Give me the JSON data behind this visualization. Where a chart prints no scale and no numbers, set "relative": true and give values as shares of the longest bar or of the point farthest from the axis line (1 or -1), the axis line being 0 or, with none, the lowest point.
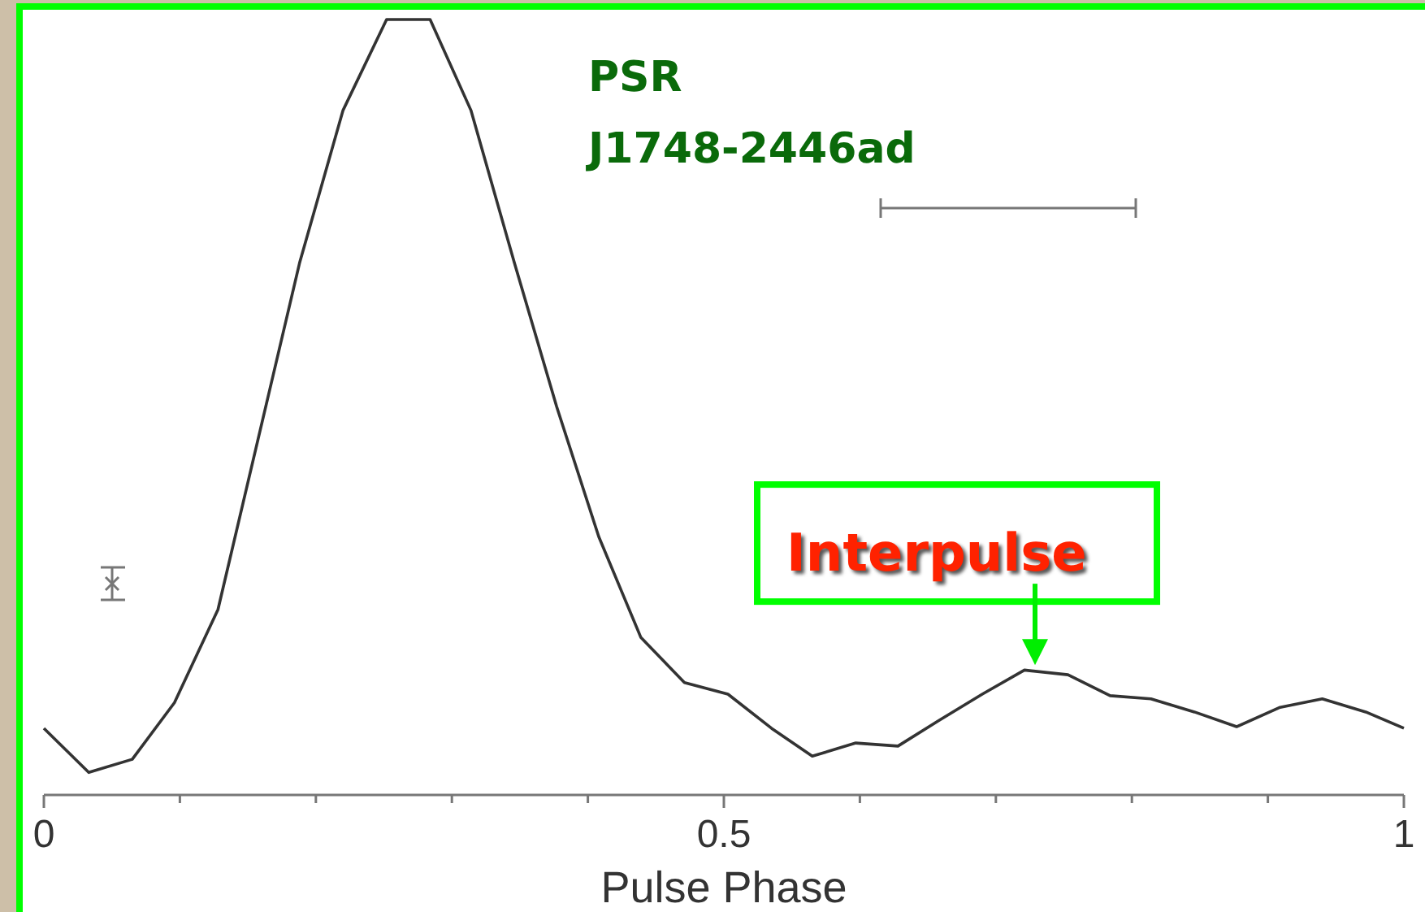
{
  "chart_data": {
    "type": "line",
    "title": "PSR J1748-2446ad",
    "xlabel": "Pulse Phase",
    "relative": true,
    "xlim": [
      0,
      1
    ],
    "xticks": [
      0,
      {
        "value": 0.1,
        "label": null
      },
      {
        "value": 0.2,
        "label": null
      },
      {
        "value": 0.3,
        "label": null
      },
      {
        "value": 0.4,
        "label": null
      },
      0.5,
      {
        "value": 0.6,
        "label": null
      },
      {
        "value": 0.7,
        "label": null
      },
      {
        "value": 0.8,
        "label": null
      },
      {
        "value": 0.9,
        "label": null
      },
      1
    ],
    "x": [
      0,
      0.033,
      0.065,
      0.096,
      0.128,
      0.157,
      0.188,
      0.22,
      0.252,
      0.284,
      0.314,
      0.346,
      0.377,
      0.408,
      0.439,
      0.471,
      0.503,
      0.535,
      0.565,
      0.597,
      0.628,
      0.658,
      0.69,
      0.721,
      0.753,
      0.784,
      0.814,
      0.846,
      0.877,
      0.909,
      0.94,
      0.972,
      1
    ],
    "series": [
      {
        "color": "#333333",
        "values": [
          0.086,
          0.029,
          0.046,
          0.119,
          0.239,
          0.455,
          0.686,
          0.883,
          1,
          1,
          0.883,
          0.686,
          0.501,
          0.333,
          0.203,
          0.145,
          0.13,
          0.086,
          0.05,
          0.067,
          0.063,
          0.096,
          0.13,
          0.161,
          0.155,
          0.128,
          0.124,
          0.107,
          0.088,
          0.113,
          0.124,
          0.107,
          0.086
        ]
      }
    ],
    "annotations": [
      {
        "text": "Interpulse",
        "x": 0.73,
        "y": 0.155
      }
    ],
    "grid": false,
    "marker": "none",
    "line_style": "solid"
  }
}
